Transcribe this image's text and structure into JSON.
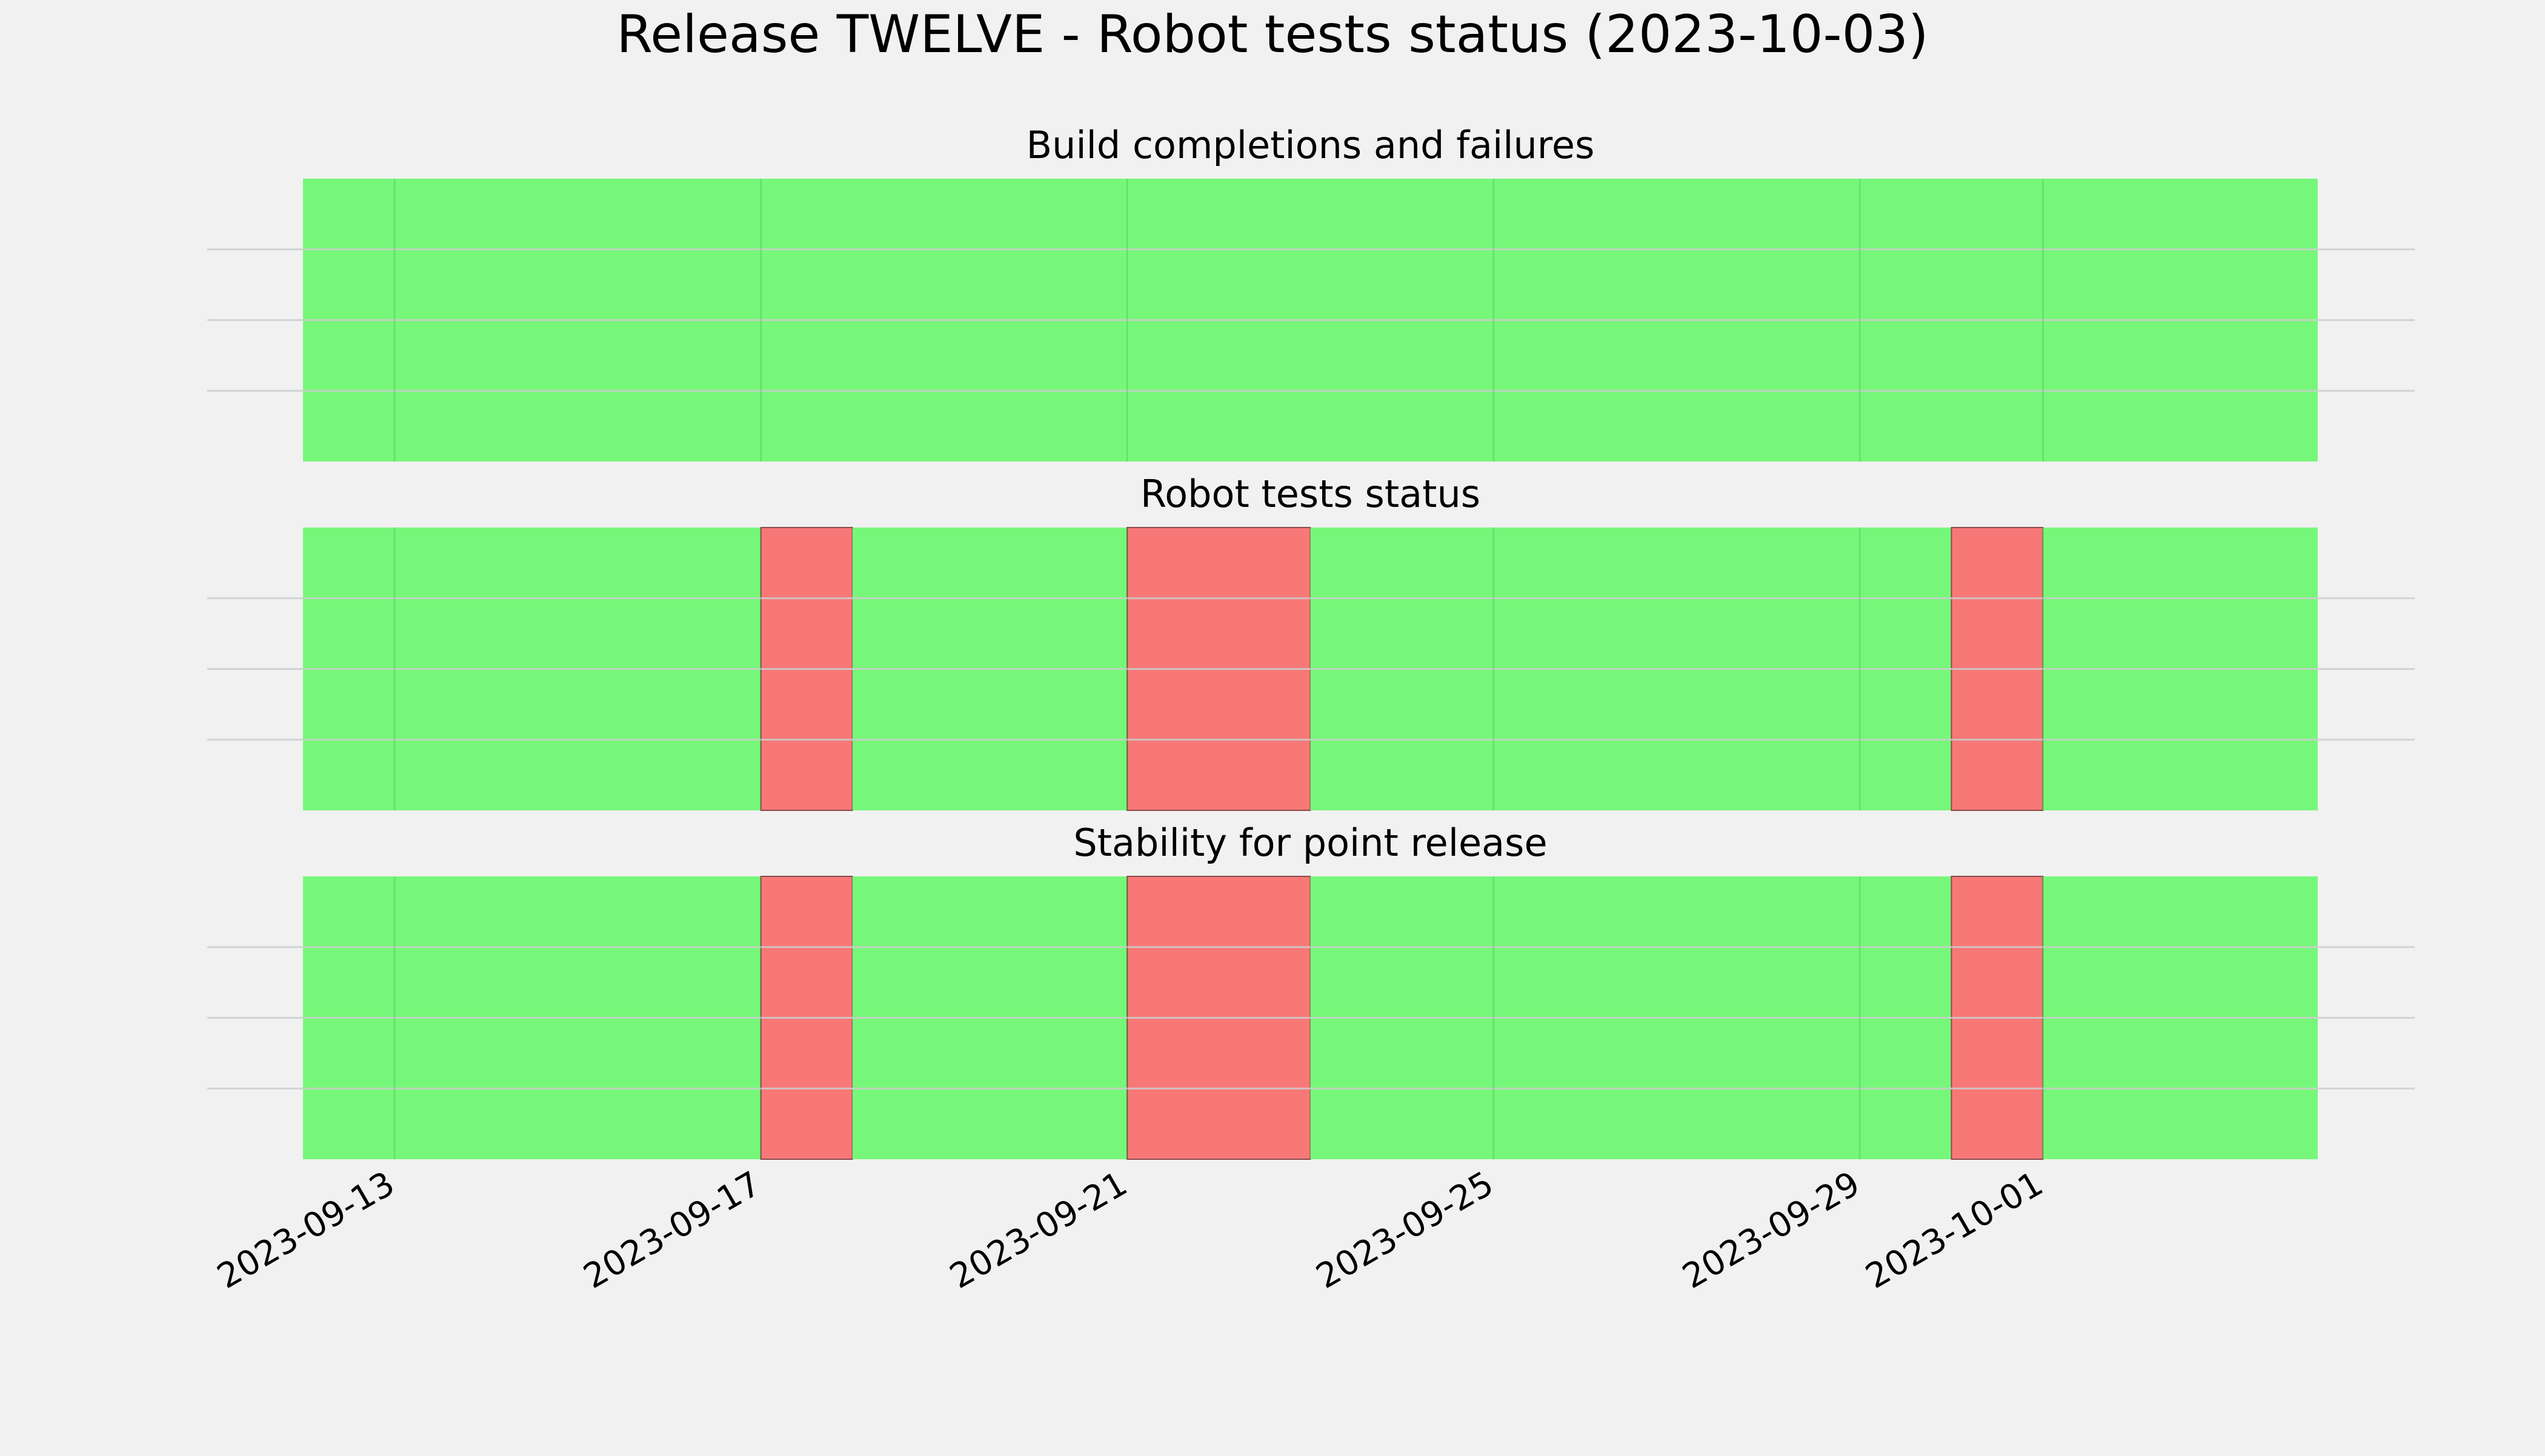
{
  "chart_data": {
    "type": "timeline",
    "title": "Release TWELVE - Robot tests status (2023-10-03)",
    "colors": {
      "pass": "#77f77a",
      "fail": "#f77877",
      "background": "#f1f1f1",
      "grid": "#cccccc"
    },
    "x_range": [
      "2023-09-11",
      "2023-10-04"
    ],
    "x_tick_labels": [
      "2023-09-13",
      "2023-09-17",
      "2023-09-21",
      "2023-09-25",
      "2023-09-29",
      "2023-10-01"
    ],
    "grid": true,
    "panels": [
      {
        "title": "Build completions and failures",
        "segments": [
          {
            "start": "2023-09-12",
            "end": "2023-10-04",
            "status": "pass"
          }
        ]
      },
      {
        "title": "Robot tests status",
        "segments": [
          {
            "start": "2023-09-12",
            "end": "2023-09-17",
            "status": "pass"
          },
          {
            "start": "2023-09-17",
            "end": "2023-09-18",
            "status": "fail"
          },
          {
            "start": "2023-09-18",
            "end": "2023-09-21",
            "status": "pass"
          },
          {
            "start": "2023-09-21",
            "end": "2023-09-23",
            "status": "fail"
          },
          {
            "start": "2023-09-23",
            "end": "2023-09-30",
            "status": "pass"
          },
          {
            "start": "2023-09-30",
            "end": "2023-10-01",
            "status": "fail"
          },
          {
            "start": "2023-10-01",
            "end": "2023-10-04",
            "status": "pass"
          }
        ]
      },
      {
        "title": "Stability for point release",
        "segments": [
          {
            "start": "2023-09-12",
            "end": "2023-09-17",
            "status": "pass"
          },
          {
            "start": "2023-09-17",
            "end": "2023-09-18",
            "status": "fail"
          },
          {
            "start": "2023-09-18",
            "end": "2023-09-21",
            "status": "pass"
          },
          {
            "start": "2023-09-21",
            "end": "2023-09-23",
            "status": "fail"
          },
          {
            "start": "2023-09-23",
            "end": "2023-09-30",
            "status": "pass"
          },
          {
            "start": "2023-09-30",
            "end": "2023-10-01",
            "status": "fail"
          },
          {
            "start": "2023-10-01",
            "end": "2023-10-04",
            "status": "pass"
          }
        ]
      }
    ]
  }
}
